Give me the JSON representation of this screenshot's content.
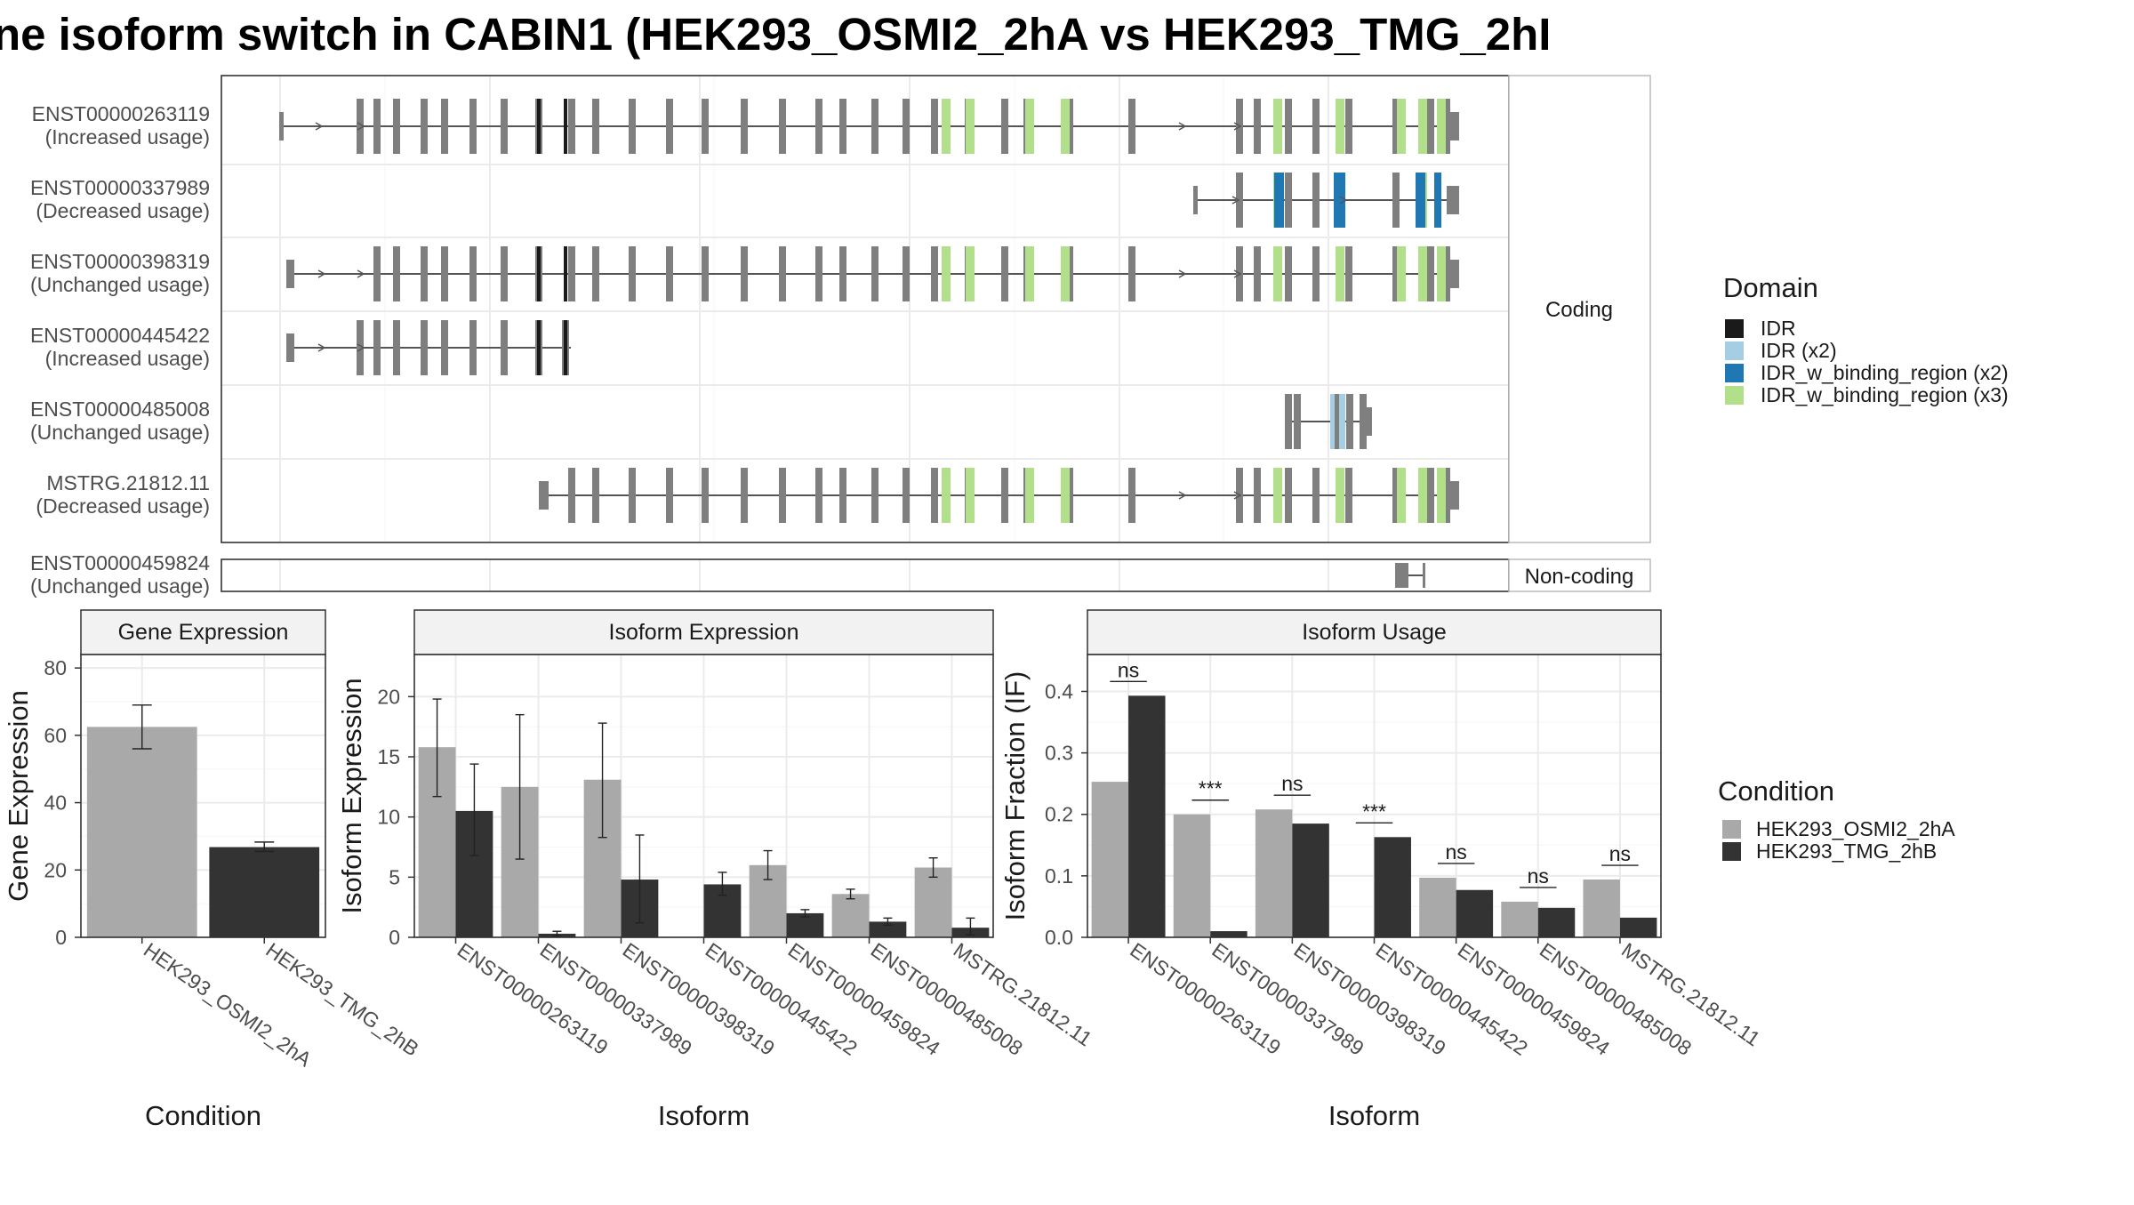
{
  "title": "ne isoform switch in CABIN1 (HEK293_OSMI2_2hA vs HEK293_TMG_2hI",
  "structure": {
    "facets": {
      "coding": "Coding",
      "noncoding": "Non-coding"
    },
    "transcripts": [
      {
        "id": "ENST00000263119",
        "status": "(Increased usage)",
        "facet": "coding"
      },
      {
        "id": "ENST00000337989",
        "status": "(Decreased usage)",
        "facet": "coding"
      },
      {
        "id": "ENST00000398319",
        "status": "(Unchanged usage)",
        "facet": "coding"
      },
      {
        "id": "ENST00000445422",
        "status": "(Increased usage)",
        "facet": "coding"
      },
      {
        "id": "ENST00000485008",
        "status": "(Unchanged usage)",
        "facet": "coding"
      },
      {
        "id": "MSTRG.21812.11",
        "status": "(Decreased usage)",
        "facet": "coding"
      },
      {
        "id": "ENST00000459824",
        "status": "(Unchanged usage)",
        "facet": "noncoding"
      }
    ]
  },
  "domain_legend": {
    "title": "Domain",
    "items": [
      {
        "label": "IDR",
        "color": "#1a1a1a"
      },
      {
        "label": "IDR (x2)",
        "color": "#a6cee3"
      },
      {
        "label": "IDR_w_binding_region (x2)",
        "color": "#1f78b4"
      },
      {
        "label": "IDR_w_binding_region (x3)",
        "color": "#b2df8a"
      }
    ]
  },
  "condition_legend": {
    "title": "Condition",
    "items": [
      {
        "label": "HEK293_OSMI2_2hA",
        "color": "#a9a9a9"
      },
      {
        "label": "HEK293_TMG_2hB",
        "color": "#333333"
      }
    ]
  },
  "chart_data": [
    {
      "type": "bar",
      "title": "Gene Expression",
      "xlabel": "Condition",
      "ylabel": "Gene Expression",
      "ylim": [
        0,
        84
      ],
      "yticks": [
        0,
        20,
        40,
        60,
        80
      ],
      "categories": [
        "HEK293_OSMI2_2hA",
        "HEK293_TMG_2hB"
      ],
      "values": [
        62.5,
        26.8
      ],
      "errors": [
        [
          56,
          69
        ],
        [
          25.5,
          28.3
        ]
      ],
      "colors": [
        "#a9a9a9",
        "#333333"
      ]
    },
    {
      "type": "bar",
      "title": "Isoform Expression",
      "xlabel": "Isoform",
      "ylabel": "Isoform Expression",
      "ylim": [
        0,
        23.5
      ],
      "yticks": [
        0,
        5,
        10,
        15,
        20
      ],
      "categories": [
        "ENST00000263119",
        "ENST00000337989",
        "ENST00000398319",
        "ENST00000445422",
        "ENST00000459824",
        "ENST00000485008",
        "MSTRG.21812.11"
      ],
      "series": [
        {
          "name": "HEK293_OSMI2_2hA",
          "color": "#a9a9a9",
          "values": [
            15.8,
            12.5,
            13.1,
            0.05,
            6.0,
            3.6,
            5.8
          ],
          "errors": [
            [
              11.7,
              19.8
            ],
            [
              6.5,
              18.5
            ],
            [
              8.3,
              17.8
            ],
            null,
            [
              4.8,
              7.2
            ],
            [
              3.2,
              4.0
            ],
            [
              5.0,
              6.6
            ]
          ]
        },
        {
          "name": "HEK293_TMG_2hB",
          "color": "#333333",
          "values": [
            10.5,
            0.3,
            4.8,
            4.4,
            2.0,
            1.3,
            0.8
          ],
          "errors": [
            [
              6.8,
              14.4
            ],
            [
              0.1,
              0.5
            ],
            [
              1.2,
              8.5
            ],
            [
              3.5,
              5.4
            ],
            [
              1.7,
              2.3
            ],
            [
              1.0,
              1.6
            ],
            [
              0.2,
              1.6
            ]
          ]
        }
      ]
    },
    {
      "type": "bar",
      "title": "Isoform Usage",
      "xlabel": "Isoform",
      "ylabel": "Isoform Fraction (IF)",
      "ylim": [
        0,
        0.46
      ],
      "yticks": [
        0.0,
        0.1,
        0.2,
        0.3,
        0.4
      ],
      "ytick_labels": [
        "0.0",
        "0.1",
        "0.2",
        "0.3",
        "0.4"
      ],
      "categories": [
        "ENST00000263119",
        "ENST00000337989",
        "ENST00000398319",
        "ENST00000445422",
        "ENST00000459824",
        "ENST00000485008",
        "MSTRG.21812.11"
      ],
      "series": [
        {
          "name": "HEK293_OSMI2_2hA",
          "color": "#a9a9a9",
          "values": [
            0.253,
            0.2,
            0.208,
            0.0,
            0.097,
            0.058,
            0.094
          ]
        },
        {
          "name": "HEK293_TMG_2hB",
          "color": "#333333",
          "values": [
            0.393,
            0.01,
            0.185,
            0.163,
            0.077,
            0.048,
            0.032
          ]
        }
      ],
      "significance": [
        "ns",
        "***",
        "ns",
        "***",
        "ns",
        "ns",
        "ns"
      ]
    }
  ]
}
